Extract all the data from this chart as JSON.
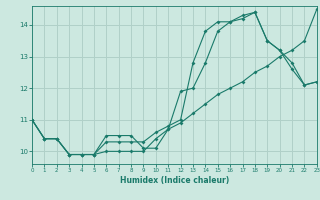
{
  "xlabel": "Humidex (Indice chaleur)",
  "bg_color": "#cce8e0",
  "grid_color": "#b0d0c8",
  "line_color": "#1a7a6a",
  "line1_x": [
    0,
    1,
    2,
    3,
    4,
    5,
    6,
    7,
    8,
    9,
    10,
    11,
    12,
    13,
    14,
    15,
    16,
    17,
    18,
    19,
    20,
    21,
    22,
    23
  ],
  "line1_y": [
    11.0,
    10.4,
    10.4,
    9.9,
    9.9,
    9.9,
    10.5,
    10.5,
    10.5,
    10.1,
    10.1,
    10.7,
    11.9,
    12.0,
    12.8,
    13.8,
    14.1,
    14.2,
    14.4,
    13.5,
    13.2,
    12.8,
    12.1,
    12.2
  ],
  "line2_x": [
    0,
    1,
    2,
    3,
    4,
    5,
    6,
    7,
    8,
    9,
    10,
    11,
    12,
    13,
    14,
    15,
    16,
    17,
    18,
    19,
    20,
    21,
    22,
    23
  ],
  "line2_y": [
    11.0,
    10.4,
    10.4,
    9.9,
    9.9,
    9.9,
    10.3,
    10.3,
    10.3,
    10.3,
    10.6,
    10.8,
    11.0,
    12.8,
    13.8,
    14.1,
    14.1,
    14.3,
    14.4,
    13.5,
    13.2,
    12.6,
    12.1,
    12.2
  ],
  "line3_x": [
    0,
    1,
    2,
    3,
    4,
    5,
    6,
    7,
    8,
    9,
    10,
    11,
    12,
    13,
    14,
    15,
    16,
    17,
    18,
    19,
    20,
    21,
    22,
    23
  ],
  "line3_y": [
    11.0,
    10.4,
    10.4,
    9.9,
    9.9,
    9.9,
    10.0,
    10.0,
    10.0,
    10.0,
    10.4,
    10.7,
    10.9,
    11.2,
    11.5,
    11.8,
    12.0,
    12.2,
    12.5,
    12.7,
    13.0,
    13.2,
    13.5,
    14.5
  ],
  "xlim": [
    0,
    23
  ],
  "ylim": [
    9.6,
    14.6
  ],
  "yticks": [
    10,
    11,
    12,
    13,
    14
  ],
  "xticks": [
    0,
    1,
    2,
    3,
    4,
    5,
    6,
    7,
    8,
    9,
    10,
    11,
    12,
    13,
    14,
    15,
    16,
    17,
    18,
    19,
    20,
    21,
    22,
    23
  ],
  "markersize": 2.0
}
